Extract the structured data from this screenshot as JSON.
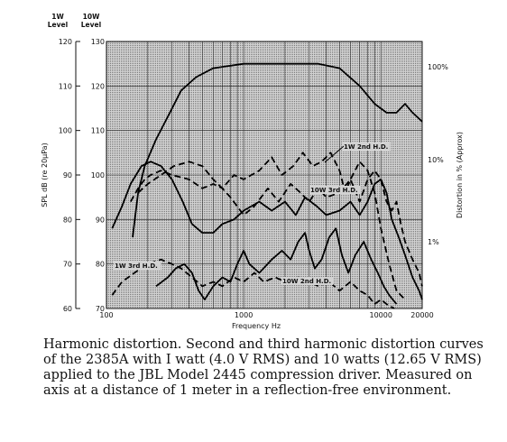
{
  "chart_data": {
    "type": "line",
    "xlabel": "Frequency Hz",
    "left_axis_1w": {
      "header": [
        "1W",
        "Level"
      ],
      "ticks": [
        120,
        110,
        100,
        90,
        80,
        70,
        60
      ]
    },
    "left_axis_10w": {
      "header": [
        "10W",
        "Level"
      ],
      "ticks": [
        130,
        120,
        110,
        100,
        90,
        80,
        70
      ]
    },
    "left_label": "SPL dB (re 20µPa)",
    "right_label": "Distortion in % (Approx)",
    "right_ticks": [
      "100%",
      "10%",
      "1%"
    ],
    "x_ticks": [
      "100",
      "1000",
      "10000",
      "20000"
    ],
    "x_range": [
      100,
      20000
    ],
    "ylim_1w": [
      60,
      120
    ],
    "grid": true,
    "annotations": [
      "1W 2nd H.D.",
      "1W 3rd H.D.",
      "10W 3rd H.D.",
      "10W 2nd H.D."
    ],
    "series": [
      {
        "name": "",
        "style": "solid",
        "values_1w": [
          [
            155,
            76
          ],
          [
            170,
            86
          ],
          [
            190,
            92
          ],
          [
            230,
            98
          ],
          [
            290,
            104
          ],
          [
            350,
            109
          ],
          [
            450,
            112
          ],
          [
            600,
            114
          ],
          [
            1000,
            115
          ],
          [
            2000,
            115
          ],
          [
            3500,
            115
          ],
          [
            5000,
            114
          ],
          [
            7000,
            110
          ],
          [
            9000,
            106
          ],
          [
            11000,
            104
          ],
          [
            13000,
            104
          ],
          [
            15000,
            106
          ],
          [
            17000,
            104
          ],
          [
            20000,
            102
          ]
        ]
      },
      {
        "name": "",
        "style": "solid",
        "values_1w": [
          [
            110,
            78
          ],
          [
            130,
            83
          ],
          [
            150,
            88
          ],
          [
            180,
            92
          ],
          [
            210,
            93
          ],
          [
            250,
            92
          ],
          [
            300,
            89
          ],
          [
            360,
            84
          ],
          [
            420,
            79
          ],
          [
            500,
            77
          ],
          [
            600,
            77
          ],
          [
            700,
            79
          ],
          [
            850,
            80
          ],
          [
            1000,
            82
          ],
          [
            1300,
            84
          ],
          [
            1600,
            82
          ],
          [
            2000,
            84
          ],
          [
            2400,
            81
          ],
          [
            2800,
            85
          ],
          [
            3400,
            83
          ],
          [
            4000,
            81
          ],
          [
            5000,
            82
          ],
          [
            6000,
            84
          ],
          [
            7000,
            81
          ],
          [
            8000,
            84
          ],
          [
            9000,
            88
          ],
          [
            10000,
            89
          ],
          [
            11000,
            86
          ],
          [
            12000,
            80
          ],
          [
            13500,
            76
          ],
          [
            15000,
            72
          ],
          [
            17000,
            67
          ],
          [
            19000,
            64
          ],
          [
            20000,
            62
          ]
        ]
      },
      {
        "name": "1W 2nd H.D.",
        "style": "dashed",
        "values_1w": [
          [
            170,
            86
          ],
          [
            200,
            88
          ],
          [
            250,
            90
          ],
          [
            310,
            92
          ],
          [
            400,
            93
          ],
          [
            500,
            92
          ],
          [
            600,
            89
          ],
          [
            700,
            87
          ],
          [
            850,
            90
          ],
          [
            1000,
            89
          ],
          [
            1300,
            91
          ],
          [
            1600,
            94
          ],
          [
            1900,
            90
          ],
          [
            2300,
            92
          ],
          [
            2700,
            95
          ],
          [
            3200,
            92
          ],
          [
            3700,
            93
          ],
          [
            4300,
            95
          ],
          [
            5000,
            91
          ],
          [
            5500,
            86
          ],
          [
            6000,
            89
          ],
          [
            7000,
            93
          ],
          [
            8000,
            91
          ],
          [
            9000,
            86
          ],
          [
            10000,
            78
          ],
          [
            11500,
            70
          ],
          [
            13000,
            64
          ],
          [
            15000,
            62
          ]
        ]
      },
      {
        "name": "10W 3rd H.D.",
        "style": "dashed",
        "values_1w": [
          [
            150,
            84
          ],
          [
            170,
            87
          ],
          [
            190,
            89
          ],
          [
            210,
            90
          ],
          [
            250,
            91
          ],
          [
            300,
            90
          ],
          [
            400,
            89
          ],
          [
            500,
            87
          ],
          [
            600,
            88
          ],
          [
            700,
            87
          ],
          [
            800,
            85
          ],
          [
            1000,
            81
          ],
          [
            1200,
            83
          ],
          [
            1500,
            87
          ],
          [
            1800,
            84
          ],
          [
            2200,
            88
          ],
          [
            2600,
            86
          ],
          [
            3000,
            84
          ],
          [
            3500,
            87
          ],
          [
            4000,
            85
          ],
          [
            5000,
            86
          ],
          [
            6000,
            89
          ],
          [
            7000,
            84
          ],
          [
            8000,
            89
          ],
          [
            9000,
            91
          ],
          [
            10000,
            89
          ],
          [
            11000,
            84
          ],
          [
            12000,
            82
          ],
          [
            13000,
            84
          ],
          [
            14000,
            79
          ],
          [
            15000,
            75
          ],
          [
            17000,
            71
          ],
          [
            19000,
            68
          ],
          [
            20000,
            65
          ]
        ]
      },
      {
        "name": "1W 3rd H.D.",
        "style": "dashed",
        "values_1w": [
          [
            110,
            63
          ],
          [
            130,
            66
          ],
          [
            160,
            68
          ],
          [
            200,
            70
          ],
          [
            250,
            71
          ],
          [
            300,
            70
          ],
          [
            350,
            69
          ],
          [
            420,
            67
          ],
          [
            500,
            65
          ],
          [
            600,
            66
          ],
          [
            700,
            65
          ],
          [
            850,
            67
          ],
          [
            1000,
            66
          ],
          [
            1200,
            68
          ],
          [
            1400,
            66
          ],
          [
            1700,
            67
          ],
          [
            2000,
            66
          ],
          [
            2500,
            67
          ],
          [
            3000,
            66
          ],
          [
            3500,
            65
          ],
          [
            4200,
            66
          ],
          [
            5000,
            64
          ],
          [
            6000,
            66
          ],
          [
            7000,
            64
          ],
          [
            8000,
            63
          ],
          [
            9000,
            61
          ],
          [
            10000,
            62
          ],
          [
            11000,
            61
          ],
          [
            12500,
            60
          ]
        ]
      },
      {
        "name": "10W 2nd H.D.",
        "style": "solid",
        "values_1w": [
          [
            230,
            65
          ],
          [
            280,
            67
          ],
          [
            320,
            69
          ],
          [
            370,
            70
          ],
          [
            420,
            68
          ],
          [
            470,
            64
          ],
          [
            520,
            62
          ],
          [
            600,
            65
          ],
          [
            700,
            67
          ],
          [
            800,
            66
          ],
          [
            900,
            70
          ],
          [
            1000,
            73
          ],
          [
            1100,
            70
          ],
          [
            1300,
            68
          ],
          [
            1600,
            71
          ],
          [
            1900,
            73
          ],
          [
            2200,
            71
          ],
          [
            2500,
            75
          ],
          [
            2800,
            77
          ],
          [
            3000,
            73
          ],
          [
            3300,
            69
          ],
          [
            3700,
            71
          ],
          [
            4200,
            76
          ],
          [
            4700,
            78
          ],
          [
            5200,
            72
          ],
          [
            5800,
            68
          ],
          [
            6500,
            72
          ],
          [
            7500,
            75
          ],
          [
            8500,
            71
          ],
          [
            9500,
            68
          ],
          [
            10500,
            65
          ],
          [
            11500,
            63
          ],
          [
            13000,
            61
          ]
        ]
      }
    ]
  },
  "caption": "Harmonic distortion. Second and third harmonic distortion curves of the 2385A with I watt (4.0 V RMS) and 10 watts (12.65 V RMS) applied to the JBL Model 2445 compression driver. Measured on axis at a distance of 1 meter in a reflection-free environment."
}
